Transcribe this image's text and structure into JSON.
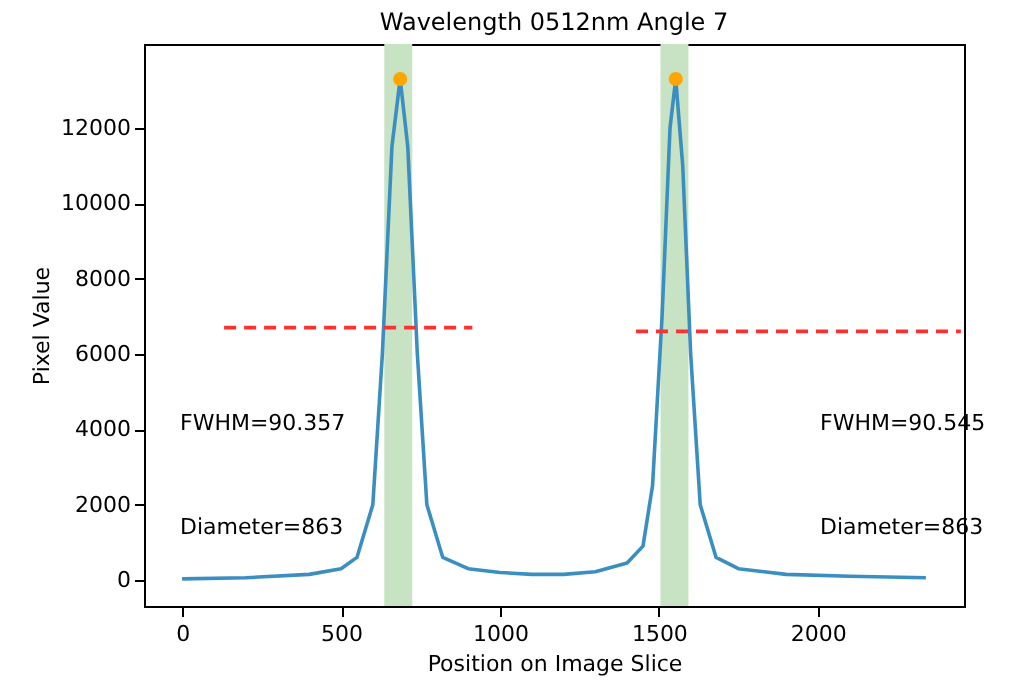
{
  "chart_data": {
    "type": "line",
    "title": "Wavelength 0512nm Angle 7",
    "xlabel": "Position on Image Slice",
    "ylabel": "Pixel Value",
    "xlim": [
      -120,
      2460
    ],
    "ylim": [
      -690,
      14230
    ],
    "xticks": [
      0,
      500,
      1000,
      1500,
      2000
    ],
    "yticks": [
      0,
      2000,
      4000,
      6000,
      8000,
      10000,
      12000
    ],
    "grid": false,
    "series": [
      {
        "color": "#3a8fc0",
        "line_style": "solid",
        "marker": "none",
        "x": [
          0,
          200,
          400,
          500,
          550,
          600,
          630,
          660,
          686,
          710,
          740,
          770,
          820,
          900,
          1000,
          1100,
          1200,
          1300,
          1400,
          1450,
          1480,
          1510,
          1535,
          1553,
          1575,
          1600,
          1630,
          1680,
          1750,
          1900,
          2100,
          2340
        ],
        "values": [
          30,
          60,
          150,
          300,
          600,
          2000,
          6000,
          11500,
          13300,
          11500,
          6000,
          2000,
          600,
          300,
          200,
          150,
          150,
          220,
          450,
          900,
          2500,
          7000,
          12000,
          13300,
          11000,
          6000,
          2000,
          600,
          300,
          150,
          100,
          60
        ]
      },
      {
        "type": "line",
        "color": "#ff3030",
        "line_style": "dashed",
        "marker": "none",
        "x": [
          132,
          913
        ],
        "values": [
          6700,
          6700
        ]
      },
      {
        "type": "line",
        "color": "#ff3030",
        "line_style": "dashed",
        "marker": "none",
        "x": [
          1428,
          2450
        ],
        "values": [
          6600,
          6600
        ]
      },
      {
        "type": "scatter",
        "color": "#ffa500",
        "marker": "circle",
        "x": [
          686,
          1553
        ],
        "values": [
          13300,
          13300
        ]
      }
    ],
    "bands": [
      {
        "axis": "x",
        "from": 636,
        "to": 724,
        "color": "#c8e2c4"
      },
      {
        "axis": "x",
        "from": 1505,
        "to": 1593,
        "color": "#c8e2c4"
      }
    ],
    "annotations": [
      "FWHM=90.357",
      "Diameter=863",
      "FWHM=90.545",
      "Diameter=863"
    ]
  }
}
